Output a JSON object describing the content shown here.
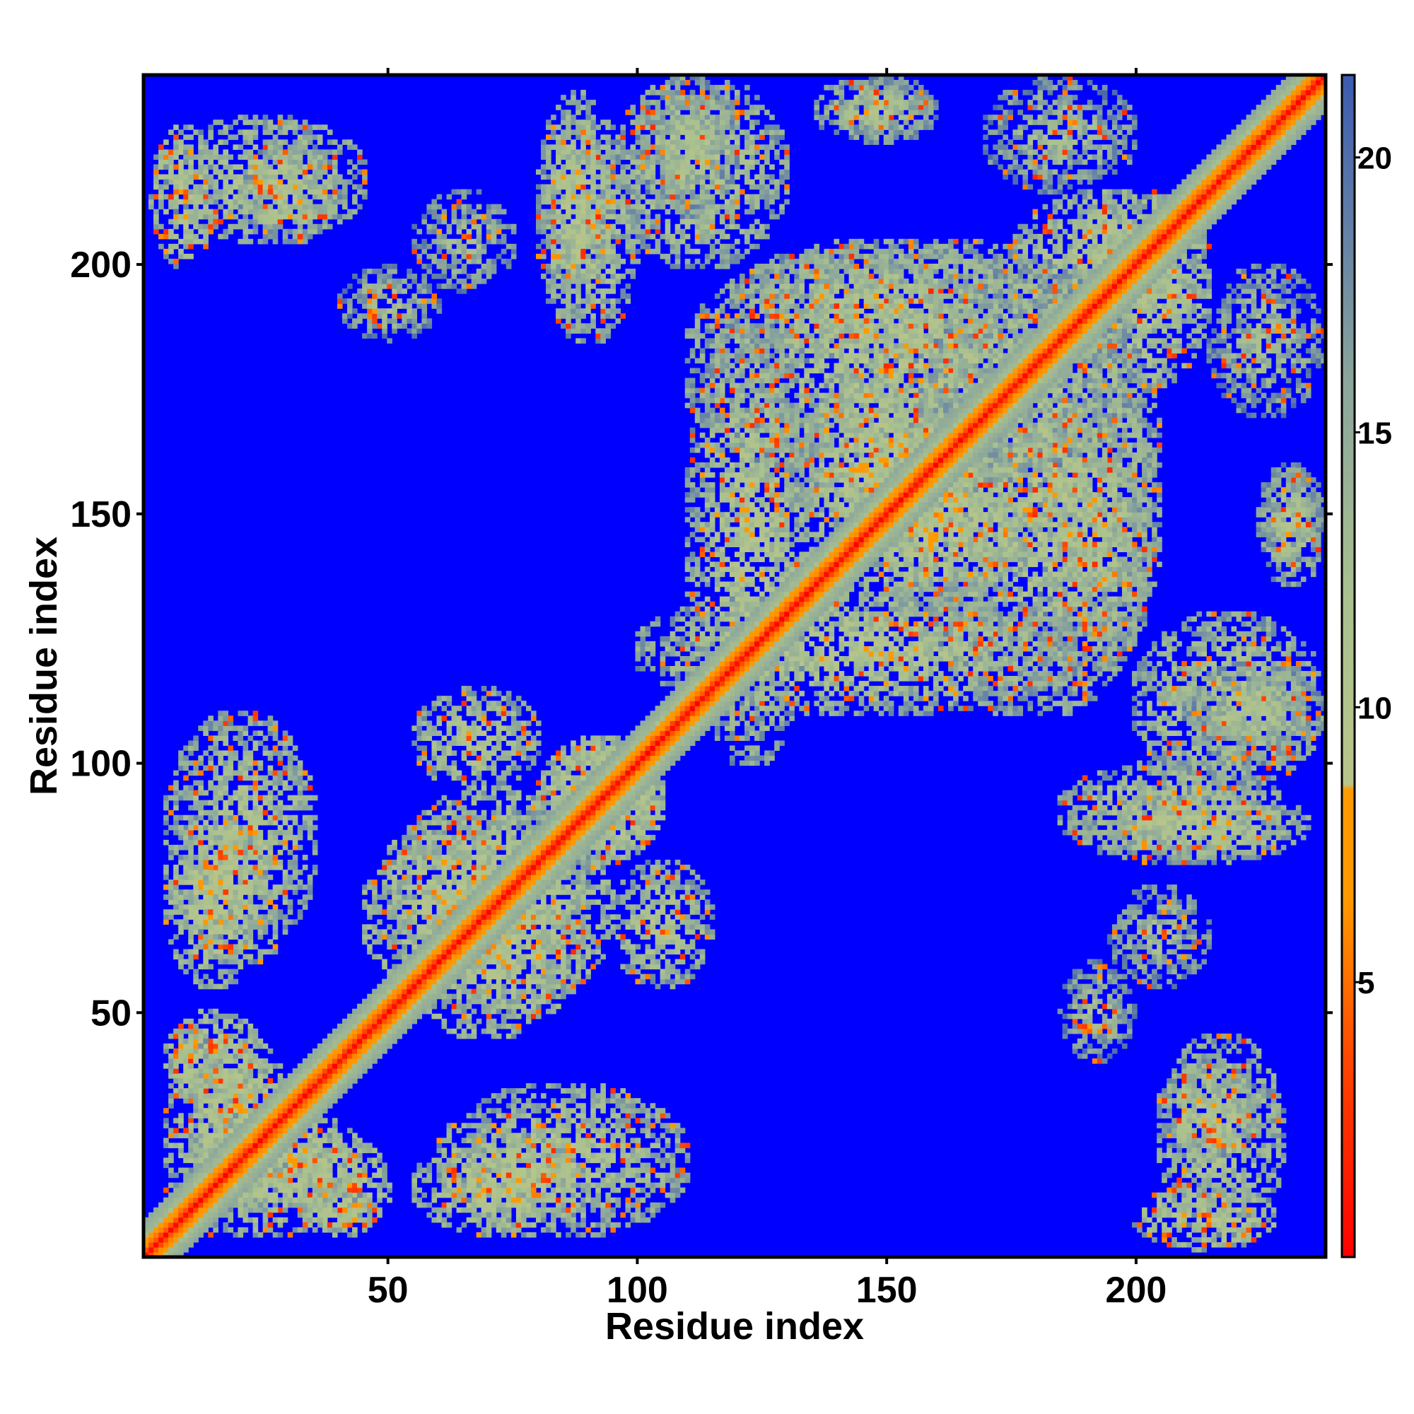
{
  "chart_data": {
    "type": "heatmap",
    "title": "",
    "xlabel": "Residue index",
    "ylabel": "Residue index",
    "xlim": [
      1,
      238
    ],
    "ylim": [
      1,
      238
    ],
    "x_ticks": [
      "50",
      "100",
      "150",
      "200"
    ],
    "x_tick_values": [
      50,
      100,
      150,
      200
    ],
    "y_ticks": [
      "50",
      "100",
      "150",
      "200"
    ],
    "y_tick_values": [
      50,
      100,
      150,
      200
    ],
    "n_residues": 238,
    "colorbar": {
      "ticks": [
        "5",
        "10",
        "15",
        "20"
      ],
      "tick_values": [
        5,
        10,
        15,
        20
      ],
      "range": [
        0,
        21.5
      ],
      "colors": {
        "near": "#ff0000",
        "mid": "#ff9900",
        "far": "#a9c08f",
        "background": "#0000ff"
      },
      "stops": [
        {
          "value": 0.0,
          "color": "#ff0000"
        },
        {
          "value": 3.5,
          "color": "#ff4400"
        },
        {
          "value": 6.5,
          "color": "#ff9900"
        },
        {
          "value": 8.5,
          "color": "#ff9900"
        },
        {
          "value": 8.6,
          "color": "#b9c58a"
        },
        {
          "value": 12.0,
          "color": "#a9c08f"
        },
        {
          "value": 16.0,
          "color": "#8aa59c"
        },
        {
          "value": 21.5,
          "color": "#3c5ab0"
        }
      ]
    },
    "contact_blocks": [
      {
        "x": [
          10,
          30
        ],
        "y": [
          10,
          45
        ],
        "value": 9
      },
      {
        "x": [
          30,
          50
        ],
        "y": [
          5,
          25
        ],
        "value": 9
      },
      {
        "x": [
          55,
          90
        ],
        "y": [
          5,
          25
        ],
        "value": 9
      },
      {
        "x": [
          5,
          35
        ],
        "y": [
          60,
          110
        ],
        "value": 10
      },
      {
        "x": [
          45,
          95
        ],
        "y": [
          50,
          90
        ],
        "value": 9
      },
      {
        "x": [
          55,
          80
        ],
        "y": [
          95,
          115
        ],
        "value": 10
      },
      {
        "x": [
          80,
          105
        ],
        "y": [
          80,
          105
        ],
        "value": 8
      },
      {
        "x": [
          110,
          135
        ],
        "y": [
          100,
          190
        ],
        "value": 10
      },
      {
        "x": [
          130,
          170
        ],
        "y": [
          140,
          180
        ],
        "value": 9
      },
      {
        "x": [
          155,
          205
        ],
        "y": [
          110,
          200
        ],
        "value": 10
      },
      {
        "x": [
          120,
          175
        ],
        "y": [
          180,
          205
        ],
        "value": 10
      },
      {
        "x": [
          175,
          215
        ],
        "y": [
          185,
          215
        ],
        "value": 9
      },
      {
        "x": [
          80,
          95
        ],
        "y": [
          190,
          235
        ],
        "value": 10
      },
      {
        "x": [
          100,
          120
        ],
        "y": [
          210,
          238
        ],
        "value": 11
      },
      {
        "x": [
          2,
          15
        ],
        "y": [
          200,
          228
        ],
        "value": 9
      },
      {
        "x": [
          20,
          40
        ],
        "y": [
          205,
          225
        ],
        "value": 10
      },
      {
        "x": [
          200,
          238
        ],
        "y": [
          95,
          130
        ],
        "value": 10
      },
      {
        "x": [
          185,
          230
        ],
        "y": [
          80,
          100
        ],
        "value": 10
      },
      {
        "x": [
          205,
          230
        ],
        "y": [
          5,
          45
        ],
        "value": 10
      },
      {
        "x": [
          195,
          215
        ],
        "y": [
          55,
          75
        ],
        "value": 12
      },
      {
        "x": [
          225,
          238
        ],
        "y": [
          135,
          160
        ],
        "value": 11
      },
      {
        "x": [
          140,
          160
        ],
        "y": [
          225,
          238
        ],
        "value": 11
      },
      {
        "x": [
          170,
          200
        ],
        "y": [
          215,
          238
        ],
        "value": 12
      },
      {
        "x": [
          40,
          60
        ],
        "y": [
          185,
          200
        ],
        "value": 12
      },
      {
        "x": [
          5,
          45
        ],
        "y": [
          5,
          20
        ],
        "value": 10
      }
    ]
  }
}
